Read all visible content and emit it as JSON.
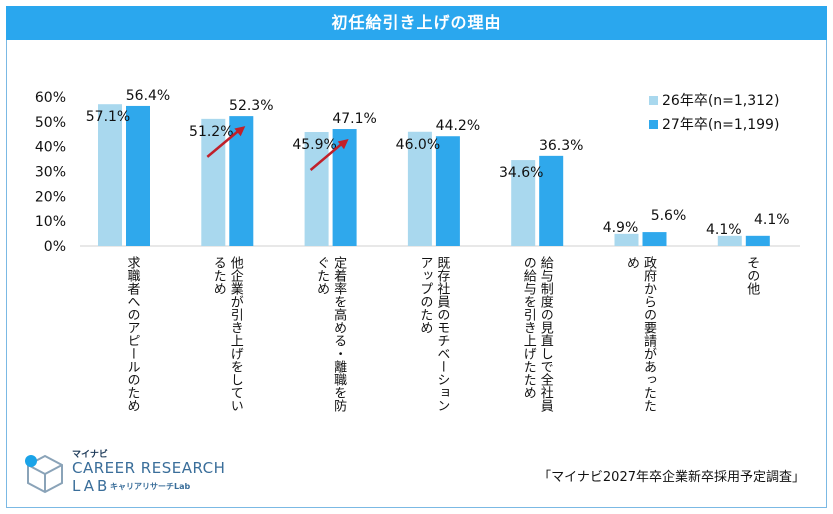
{
  "title": "初任給引き上げの理由",
  "chart_data": {
    "type": "bar",
    "title": "初任給引き上げの理由",
    "ylim": [
      0,
      60
    ],
    "yticks": [
      "0%",
      "10%",
      "20%",
      "30%",
      "40%",
      "50%",
      "60%"
    ],
    "ytick_values": [
      0,
      10,
      20,
      30,
      40,
      50,
      60
    ],
    "categories": [
      [
        "求職者へのアピールのため"
      ],
      [
        "他企業が引き上げをしてい",
        "るため"
      ],
      [
        "定着率を高める・離職を防",
        "ぐため"
      ],
      [
        "既存社員のモチベーション",
        "アップのため"
      ],
      [
        "給与制度の見直しで全社員",
        "の給与を引き上げたため"
      ],
      [
        "政府からの要請があったた",
        "め"
      ],
      [
        "その他"
      ]
    ],
    "series": [
      {
        "name": "26年卒(n=1,312)",
        "color": "#a9d8ee",
        "values": [
          57.1,
          51.2,
          45.9,
          46.0,
          34.6,
          4.9,
          4.1
        ],
        "labels": [
          "57.1%",
          "51.2%",
          "45.9%",
          "46.0%",
          "34.6%",
          "4.9%",
          "4.1%"
        ]
      },
      {
        "name": "27年卒(n=1,199)",
        "color": "#2fa8ec",
        "values": [
          56.4,
          52.3,
          47.1,
          44.2,
          36.3,
          5.6,
          4.1
        ],
        "labels": [
          "56.4%",
          "52.3%",
          "47.1%",
          "44.2%",
          "36.3%",
          "5.6%",
          "4.1%"
        ]
      }
    ],
    "legend_position": "top-right",
    "annotations": [
      {
        "type": "arrow",
        "category_index": 1,
        "color": "#c0202a"
      },
      {
        "type": "arrow",
        "category_index": 2,
        "color": "#c0202a"
      }
    ]
  },
  "logo": {
    "brand": "マイナビ",
    "line1": "CAREER RESEARCH",
    "line2a": "LAB",
    "line2b": "キャリアリサーチLab"
  },
  "source": "「マイナビ2027年卒企業新卒採用予定調査」"
}
